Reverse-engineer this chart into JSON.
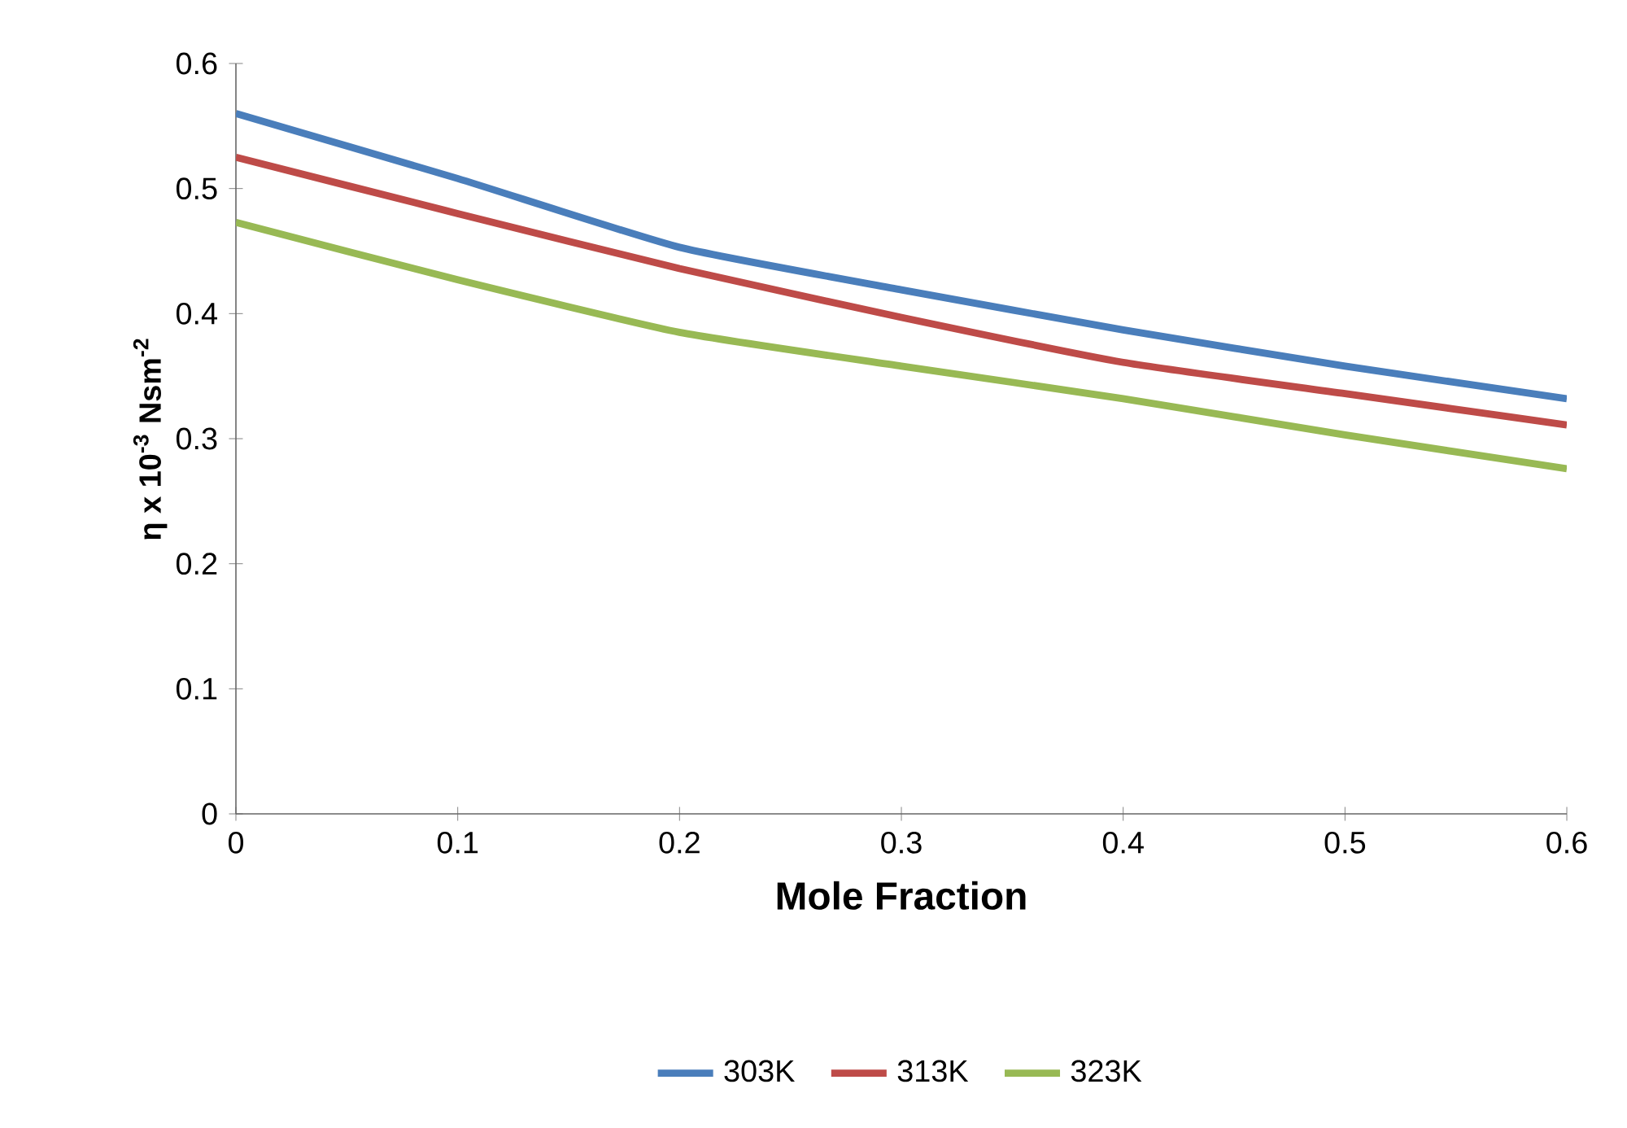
{
  "chart_data": {
    "type": "line",
    "xlabel": "Mole Fraction",
    "ylabel": "η x 10$^{-3}$ Nsm$^{-2}$",
    "x": [
      0,
      0.1,
      0.2,
      0.3,
      0.4,
      0.5,
      0.6
    ],
    "series": [
      {
        "name": "303K",
        "color": "#4a7ebb",
        "values": [
          0.56,
          0.508,
          0.453,
          0.419,
          0.387,
          0.358,
          0.332
        ]
      },
      {
        "name": "313K",
        "color": "#be4b48",
        "values": [
          0.525,
          0.48,
          0.436,
          0.397,
          0.361,
          0.336,
          0.311
        ]
      },
      {
        "name": "323K",
        "color": "#98b954",
        "values": [
          0.473,
          0.427,
          0.385,
          0.358,
          0.332,
          0.303,
          0.276
        ]
      }
    ],
    "xlim": [
      0,
      0.6
    ],
    "xticks": [
      0,
      0.1,
      0.2,
      0.3,
      0.4,
      0.5,
      0.6
    ],
    "ylim": [
      0,
      0.6
    ],
    "yticks": [
      0,
      0.1,
      0.2,
      0.3,
      0.4,
      0.5,
      0.6
    ],
    "grid": false,
    "legend": "bottom",
    "marker": "none",
    "line_style": "solid"
  }
}
